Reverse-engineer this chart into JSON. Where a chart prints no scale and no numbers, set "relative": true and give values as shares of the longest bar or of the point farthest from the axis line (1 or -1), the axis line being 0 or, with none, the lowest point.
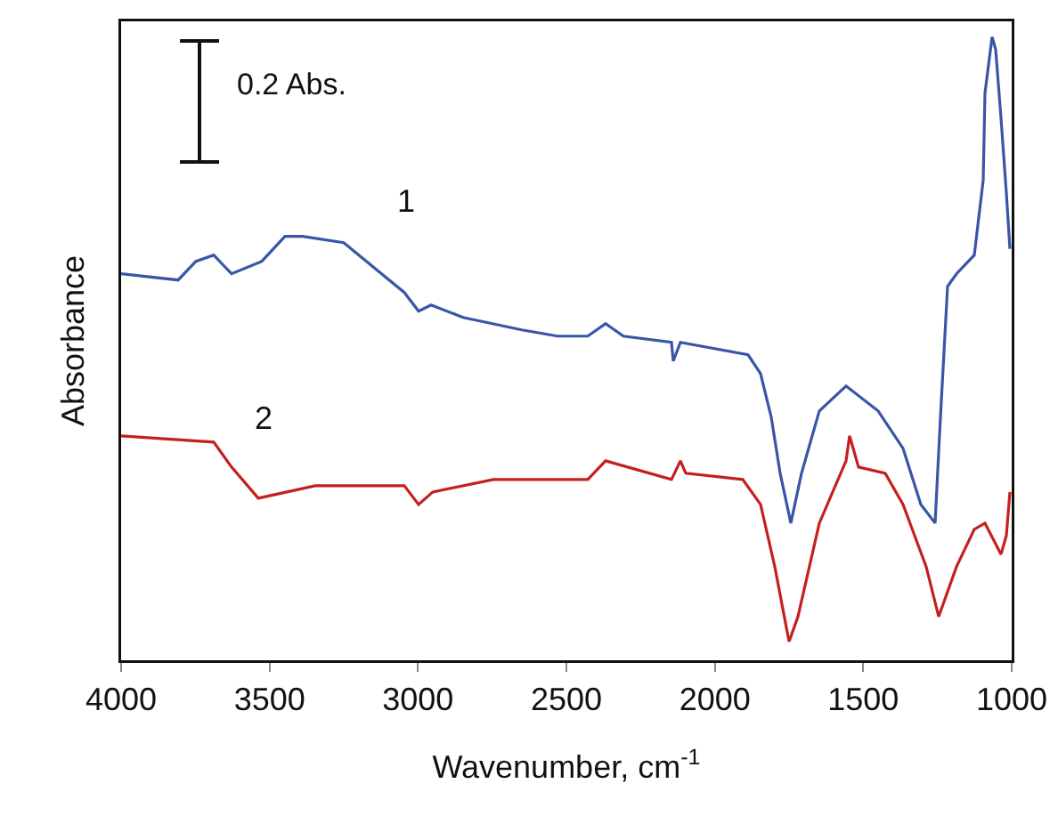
{
  "chart_data": {
    "type": "line",
    "relative": true,
    "xlabel": "Wavenumber, cm$^{-1}$",
    "ylabel": "Absorbance",
    "xlim": [
      4000,
      1000
    ],
    "xticks": [
      4000,
      3500,
      3000,
      2500,
      2000,
      1500,
      1000
    ],
    "grid": false,
    "marker": "none",
    "line_style": "solid",
    "annotations": [
      "0.2 Abs.",
      "1",
      "2"
    ],
    "series": [
      {
        "color": "#3a55a8",
        "x": [
          4000,
          3808,
          3748,
          3688,
          3628,
          3526,
          3448,
          3388,
          3250,
          3148,
          3046,
          2998,
          2956,
          2848,
          2650,
          2530,
          2428,
          2368,
          2308,
          2146,
          2140,
          2116,
          1888,
          1846,
          1810,
          1780,
          1744,
          1708,
          1648,
          1558,
          1450,
          1366,
          1306,
          1258,
          1240,
          1216,
          1186,
          1126,
          1096,
          1090,
          1066,
          1054,
          1036,
          1018,
          1006
        ],
        "values": [
          0.62,
          0.61,
          0.64,
          0.65,
          0.62,
          0.64,
          0.68,
          0.68,
          0.67,
          0.63,
          0.59,
          0.56,
          0.57,
          0.55,
          0.53,
          0.52,
          0.52,
          0.54,
          0.52,
          0.51,
          0.48,
          0.51,
          0.49,
          0.46,
          0.39,
          0.3,
          0.22,
          0.3,
          0.4,
          0.44,
          0.4,
          0.34,
          0.25,
          0.22,
          0.39,
          0.6,
          0.62,
          0.65,
          0.77,
          0.91,
          1.0,
          0.98,
          0.87,
          0.75,
          0.66
        ]
      },
      {
        "color": "#c42020",
        "x": [
          4000,
          3688,
          3628,
          3538,
          3346,
          3046,
          2998,
          2950,
          2746,
          2428,
          2368,
          2146,
          2116,
          2098,
          1906,
          1846,
          1798,
          1750,
          1720,
          1648,
          1558,
          1546,
          1516,
          1426,
          1366,
          1288,
          1246,
          1186,
          1126,
          1090,
          1036,
          1018,
          1006
        ],
        "values": [
          0.36,
          0.35,
          0.31,
          0.26,
          0.28,
          0.28,
          0.25,
          0.27,
          0.29,
          0.29,
          0.32,
          0.29,
          0.32,
          0.3,
          0.29,
          0.25,
          0.15,
          0.03,
          0.07,
          0.22,
          0.32,
          0.36,
          0.31,
          0.3,
          0.25,
          0.15,
          0.07,
          0.15,
          0.21,
          0.22,
          0.17,
          0.2,
          0.27
        ]
      }
    ]
  }
}
